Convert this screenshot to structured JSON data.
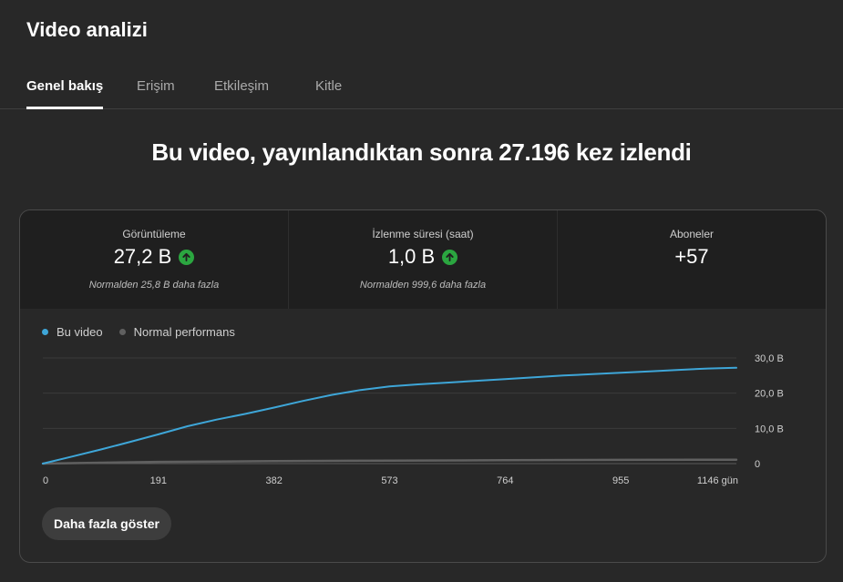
{
  "page": {
    "title": "Video analizi"
  },
  "tabs": [
    {
      "label": "Genel bakış",
      "active": true
    },
    {
      "label": "Erişim",
      "active": false
    },
    {
      "label": "Etkileşim",
      "active": false
    },
    {
      "label": "Kitle",
      "active": false
    }
  ],
  "headline": "Bu video, yayınlandıktan sonra 27.196 kez izlendi",
  "metrics": [
    {
      "label": "Görüntüleme",
      "value": "27,2 B",
      "trend": "up",
      "sub": "Normalden 25,8 B daha fazla"
    },
    {
      "label": "İzlenme süresi (saat)",
      "value": "1,0 B",
      "trend": "up",
      "sub": "Normalden 999,6 daha fazla"
    },
    {
      "label": "Aboneler",
      "value": "+57",
      "trend": "none",
      "sub": ""
    }
  ],
  "legend": [
    {
      "label": "Bu video",
      "color": "#3ea6d8"
    },
    {
      "label": "Normal performans",
      "color": "#606060"
    }
  ],
  "colors": {
    "accent": "#3ea6d8",
    "trend_up": "#2ba640",
    "baseline": "#606060"
  },
  "chart_data": {
    "type": "line",
    "xticks": [
      "0",
      "191",
      "382",
      "573",
      "764",
      "955",
      "1146 gün"
    ],
    "yticks": [
      "30,0 B",
      "20,0 B",
      "10,0 B",
      "0"
    ],
    "xlim": [
      0,
      1146
    ],
    "ylim": [
      0,
      30000
    ],
    "grid": true,
    "legend_position": "top-left",
    "series": [
      {
        "name": "Bu video",
        "color": "#3ea6d8",
        "x": [
          0,
          48,
          96,
          143,
          191,
          239,
          287,
          334,
          382,
          430,
          477,
          525,
          573,
          620,
          668,
          716,
          764,
          812,
          860,
          908,
          955,
          1003,
          1051,
          1099,
          1146
        ],
        "y": [
          0,
          2000,
          4000,
          6100,
          8300,
          10600,
          12500,
          14100,
          15900,
          17800,
          19500,
          20900,
          21900,
          22500,
          23000,
          23500,
          24000,
          24500,
          25000,
          25400,
          25800,
          26200,
          26600,
          27000,
          27196
        ]
      },
      {
        "name": "Normal performans",
        "color": "#606060",
        "x": [
          0,
          191,
          382,
          573,
          764,
          955,
          1146
        ],
        "y": [
          0,
          500,
          700,
          850,
          950,
          1050,
          1100
        ]
      }
    ]
  },
  "button": {
    "label": "Daha fazla göster"
  }
}
